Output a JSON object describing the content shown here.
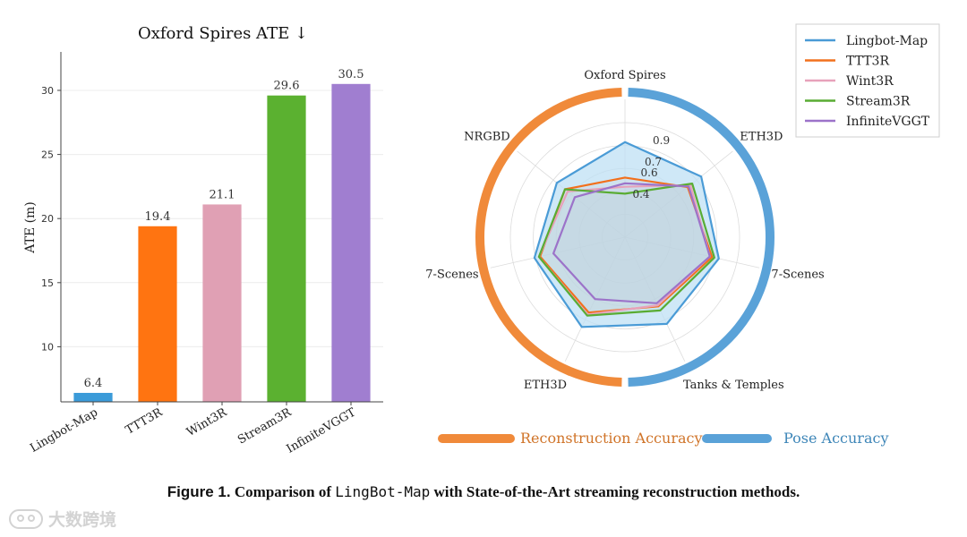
{
  "chart_data": [
    {
      "type": "bar",
      "title": "Oxford Spires ATE ↓",
      "xlabel": "",
      "ylabel": "ATE (m)",
      "ylim": [
        5.7,
        33.0
      ],
      "yticks": [
        10,
        15,
        20,
        25,
        30
      ],
      "categories": [
        "Lingbot-Map",
        "TTT3R",
        "Wint3R",
        "Stream3R",
        "InfiniteVGGT"
      ],
      "values": [
        6.4,
        19.4,
        21.1,
        29.6,
        30.5
      ],
      "value_labels": [
        "6.4",
        "19.4",
        "21.1",
        "29.6",
        "30.5"
      ],
      "colors": [
        "#3b9bd9",
        "#ff7411",
        "#e0a0b4",
        "#5bb130",
        "#a07ed0"
      ],
      "grid": true
    },
    {
      "type": "radar",
      "axes": [
        "Oxford Spires",
        "ETH3D",
        "7-Scenes",
        "Tanks & Temples",
        "ETH3D",
        "7-Scenes",
        "NRGBD"
      ],
      "rmax": 1.0,
      "rticks": [
        0.4,
        0.6,
        0.7,
        0.9
      ],
      "rtick_labels": [
        "0.4",
        "0.6",
        "0.7",
        "0.9"
      ],
      "series": [
        {
          "name": "Lingbot-Map",
          "color": "#4a9bd6",
          "fill": true,
          "values": [
            0.83,
            0.85,
            0.84,
            0.84,
            0.87,
            0.81,
            0.76
          ]
        },
        {
          "name": "TTT3R",
          "color": "#f2701d",
          "fill": false,
          "values": [
            0.52,
            0.7,
            0.78,
            0.67,
            0.73,
            0.76,
            0.67
          ]
        },
        {
          "name": "Wint3R",
          "color": "#e7a2bb",
          "fill": false,
          "values": [
            0.44,
            0.73,
            0.76,
            0.66,
            0.75,
            0.77,
            0.64
          ]
        },
        {
          "name": "Stream3R",
          "color": "#59ac33",
          "fill": false,
          "values": [
            0.38,
            0.75,
            0.8,
            0.71,
            0.76,
            0.77,
            0.67
          ]
        },
        {
          "name": "InfiniteVGGT",
          "color": "#9c73c9",
          "fill": false,
          "values": [
            0.47,
            0.71,
            0.76,
            0.64,
            0.6,
            0.64,
            0.56
          ]
        }
      ],
      "outer_arcs": [
        {
          "label": "Reconstruction Accuracy",
          "color": "#f08a3a",
          "text_color": "#d07429"
        },
        {
          "label": "Pose Accuracy",
          "color": "#5aa2d8",
          "text_color": "#3e86b8"
        }
      ],
      "legend_position": "top-right"
    }
  ],
  "caption": {
    "prefix": "Figure 1.",
    "text1": "Comparison of",
    "code": "LingBot-Map",
    "text2": "with State-of-the-Art streaming reconstruction methods."
  },
  "watermark": "大数跨境"
}
